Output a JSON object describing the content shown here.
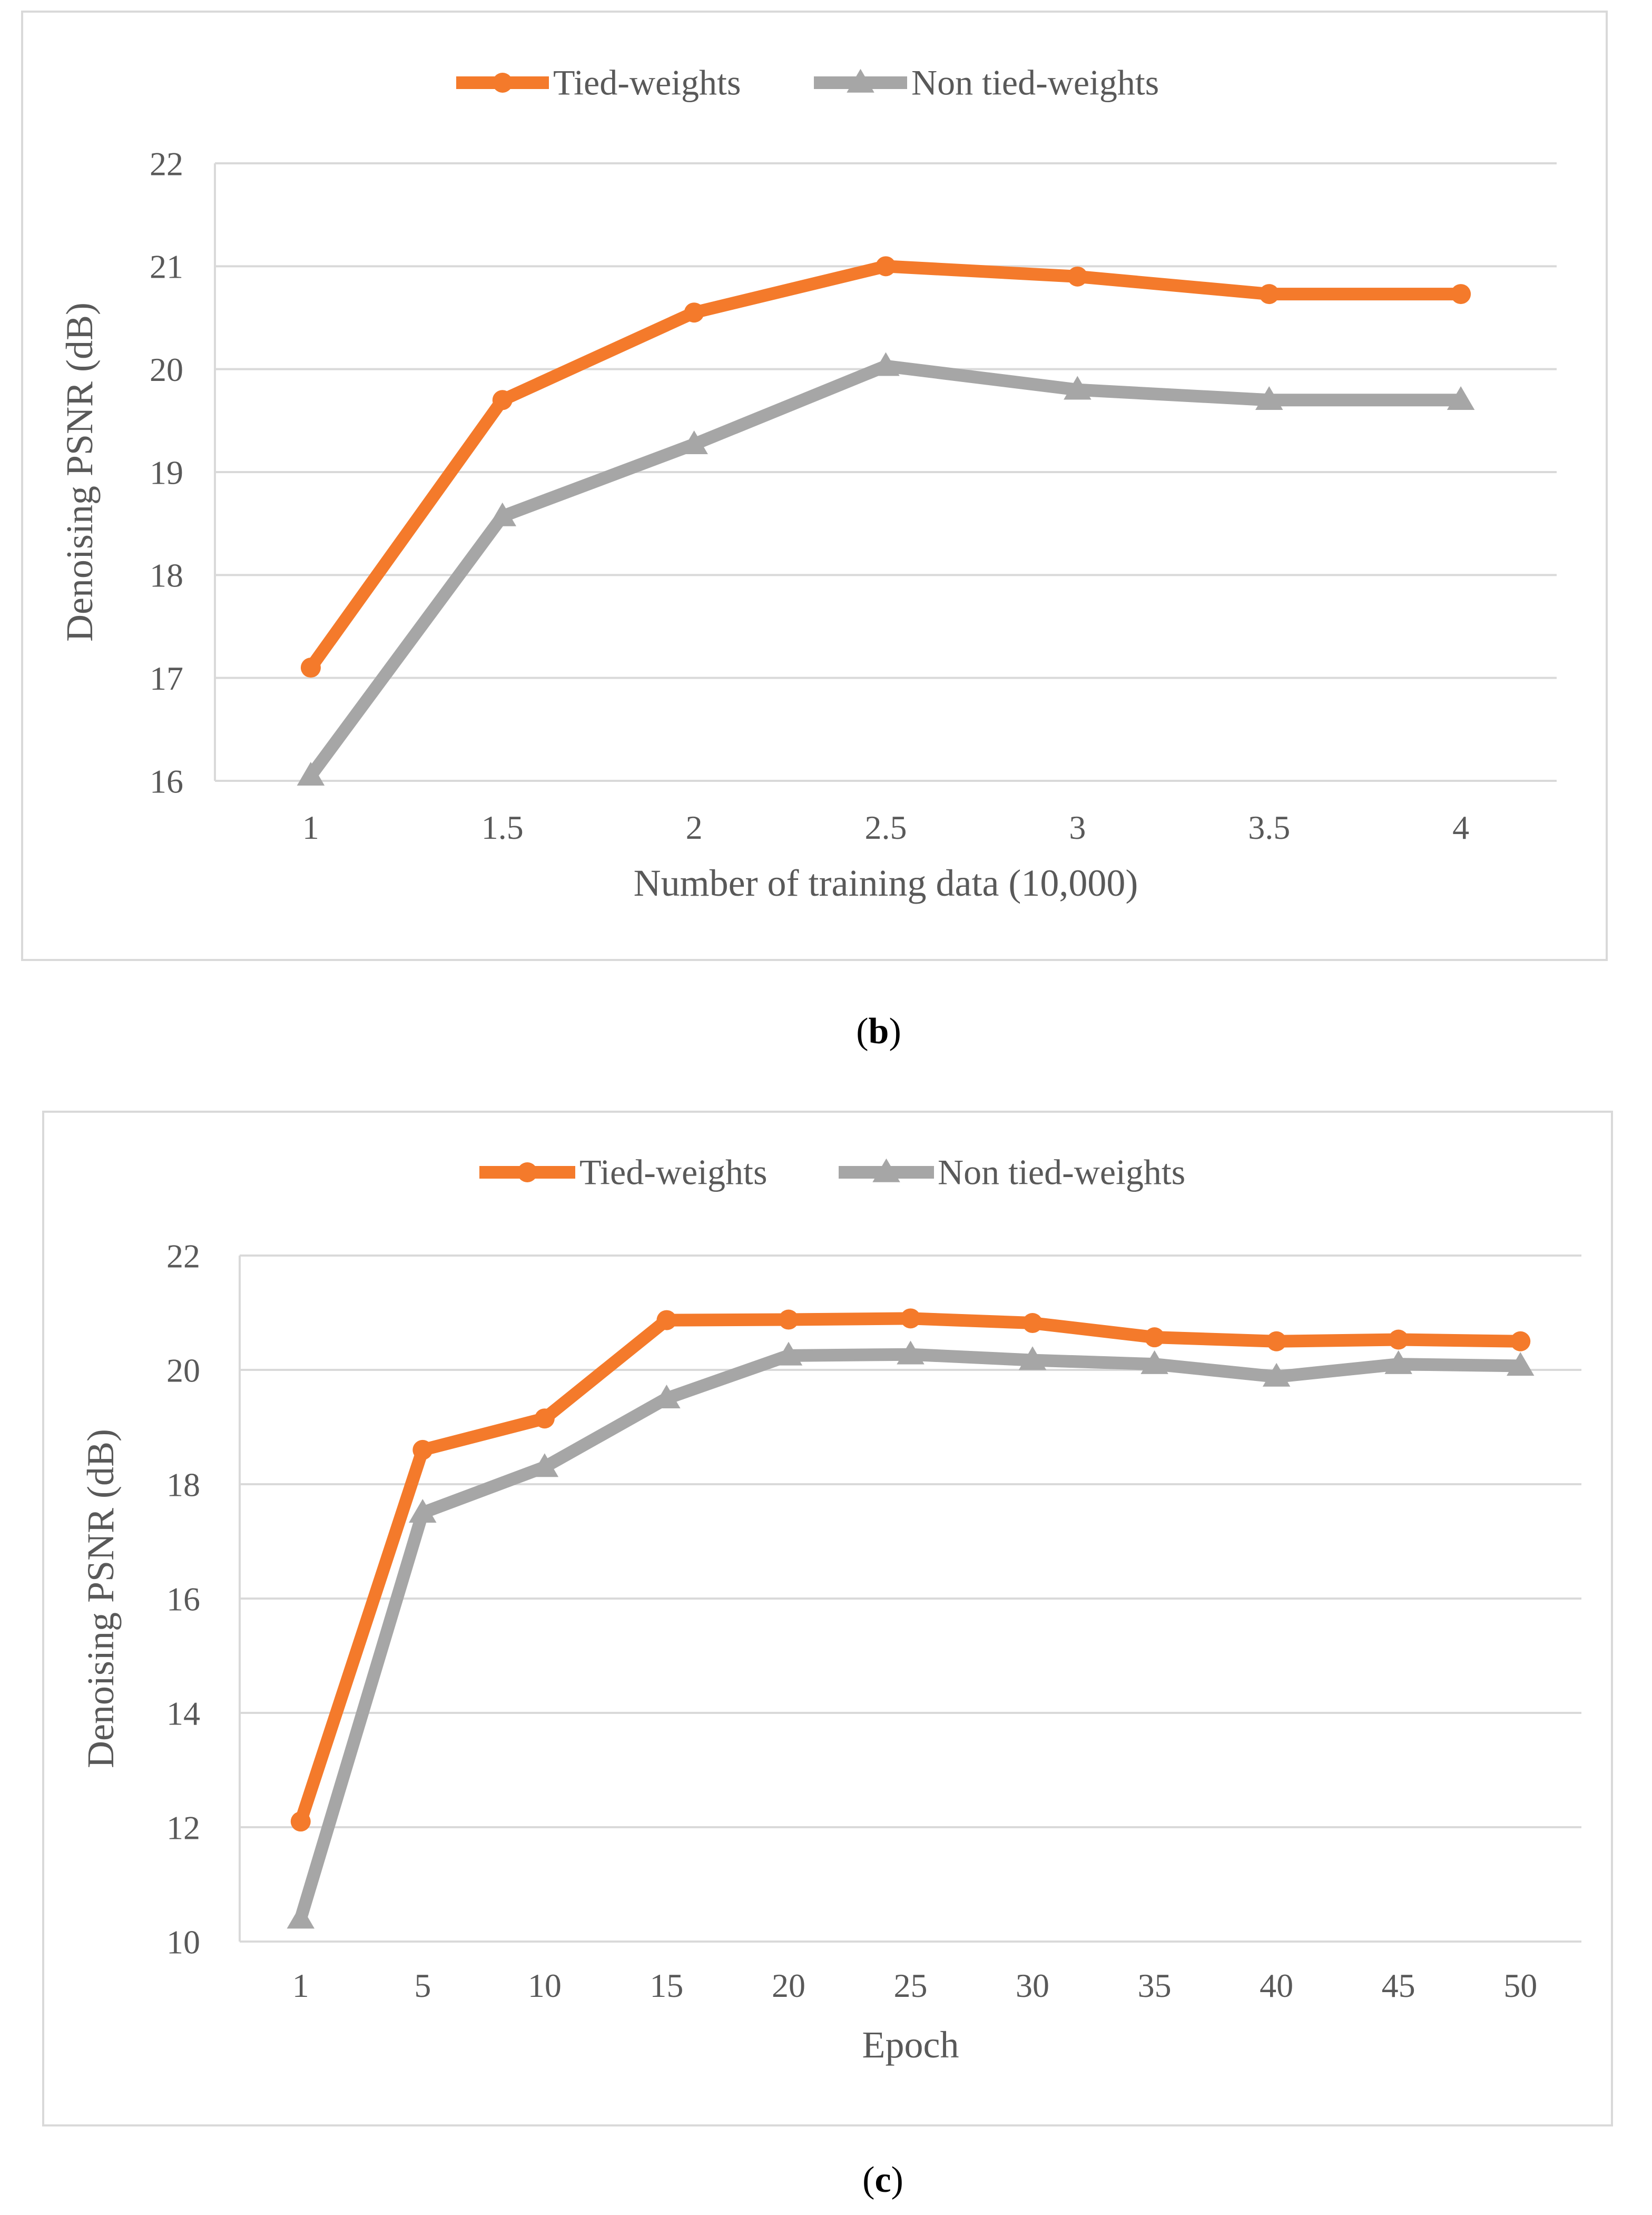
{
  "colors": {
    "tied": "#F47A2B",
    "non_tied": "#A6A6A6",
    "grid": "#D9D9D9",
    "text": "#595959",
    "frame": "#D9D9D9",
    "caption": "#000000"
  },
  "chart_data": [
    {
      "type": "line",
      "caption_open": "(",
      "caption_letter": "b",
      "caption_close": ")",
      "xlabel": "Number of training data (10,000)",
      "ylabel": "Denoising PSNR (dB)",
      "categories": [
        "1",
        "1.5",
        "2",
        "2.5",
        "3",
        "3.5",
        "4"
      ],
      "ylim": [
        16,
        22
      ],
      "yticks": [
        "16",
        "17",
        "18",
        "19",
        "20",
        "21",
        "22"
      ],
      "grid": true,
      "legend_position": "top-center",
      "series": [
        {
          "name": "Tied-weights",
          "marker": "circle",
          "values": [
            17.1,
            19.7,
            20.55,
            21.0,
            20.9,
            20.73,
            20.73
          ]
        },
        {
          "name": "Non tied-weights",
          "marker": "triangle",
          "values": [
            16.05,
            18.57,
            19.27,
            20.03,
            19.8,
            19.7,
            19.7
          ]
        }
      ]
    },
    {
      "type": "line",
      "caption_open": "(",
      "caption_letter": "c",
      "caption_close": ")",
      "xlabel": "Epoch",
      "ylabel": "Denoising PSNR (dB)",
      "categories": [
        "1",
        "5",
        "10",
        "15",
        "20",
        "25",
        "30",
        "35",
        "40",
        "45",
        "50"
      ],
      "ylim": [
        10,
        22
      ],
      "yticks": [
        "10",
        "12",
        "14",
        "16",
        "18",
        "20",
        "22"
      ],
      "grid": true,
      "legend_position": "top-center",
      "series": [
        {
          "name": "Tied-weights",
          "marker": "circle",
          "values": [
            12.1,
            18.6,
            19.15,
            20.87,
            20.88,
            20.9,
            20.82,
            20.57,
            20.5,
            20.53,
            20.5
          ]
        },
        {
          "name": "Non tied-weights",
          "marker": "triangle",
          "values": [
            10.4,
            17.5,
            18.3,
            19.5,
            20.25,
            20.27,
            20.17,
            20.1,
            19.88,
            20.1,
            20.07
          ]
        }
      ]
    }
  ]
}
